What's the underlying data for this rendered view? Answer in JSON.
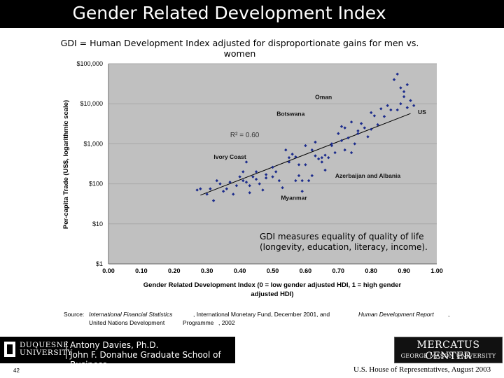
{
  "slide": {
    "title": "Gender Related Development Index",
    "subtitle": "GDI = Human Development Index adjusted for disproportionate gains for men vs. women",
    "page_number": "42",
    "footer_right": "U.S. House of Representatives, August 2003"
  },
  "source": {
    "label": "Source:",
    "pub1": "International Financial Statistics",
    "org1": ", International Monetary Fund, December 2001, and",
    "pub2": "Human Development Report",
    "comma": ",",
    "org2a": "United Nations Development",
    "org2b": "Programme",
    "year": ", 2002"
  },
  "logos": {
    "duquesne_line1": "DUQUESNE",
    "duquesne_line2": "UNIVERSITY",
    "author_line1": "Antony Davies, Ph.D.",
    "author_line2": "John F. Donahue Graduate School of Business",
    "mercatus_line1": "MERCATUS CENTER",
    "mercatus_line2": "GEORGE MASON UNIVERSITY"
  },
  "chart_data": {
    "type": "scatter",
    "xlabel": "Gender Related Development Index (0 = low gender adjusted HDI, 1 = high gender adjusted HDI)",
    "ylabel": "Per-capita Trade (US$, logarithmic scale)",
    "xlim": [
      0,
      1
    ],
    "ylim": [
      1,
      100000
    ],
    "y_scale": "log",
    "x_ticks": [
      "0.00",
      "0.10",
      "0.20",
      "0.30",
      "0.40",
      "0.50",
      "0.60",
      "0.70",
      "0.80",
      "0.90",
      "1.00"
    ],
    "y_ticks": [
      "$1",
      "$10",
      "$100",
      "$1,000",
      "$10,000",
      "$100,000"
    ],
    "y_tick_values": [
      1,
      10,
      100,
      1000,
      10000,
      100000
    ],
    "r_squared": "R² = 0.60",
    "annotations": [
      {
        "text": "Oman",
        "x": 0.655,
        "y": 13000
      },
      {
        "text": "US",
        "x": 0.955,
        "y": 5500
      },
      {
        "text": "Botswana",
        "x": 0.555,
        "y": 5000
      },
      {
        "text": "Ivory Coast",
        "x": 0.37,
        "y": 420
      },
      {
        "text": "Azerbaijan and Albania",
        "x": 0.79,
        "y": 140
      },
      {
        "text": "Myanmar",
        "x": 0.565,
        "y": 40
      }
    ],
    "note": "GDI measures equality of quality of life (longevity, education, literacy, income).",
    "trendline": {
      "x": [
        0.28,
        0.92
      ],
      "y": [
        52,
        5700
      ]
    },
    "points": [
      [
        0.27,
        70
      ],
      [
        0.28,
        75
      ],
      [
        0.3,
        55
      ],
      [
        0.31,
        75
      ],
      [
        0.32,
        38
      ],
      [
        0.33,
        120
      ],
      [
        0.34,
        100
      ],
      [
        0.35,
        65
      ],
      [
        0.36,
        75
      ],
      [
        0.37,
        110
      ],
      [
        0.38,
        55
      ],
      [
        0.39,
        90
      ],
      [
        0.4,
        150
      ],
      [
        0.41,
        200
      ],
      [
        0.41,
        120
      ],
      [
        0.42,
        110
      ],
      [
        0.43,
        90
      ],
      [
        0.43,
        60
      ],
      [
        0.44,
        150
      ],
      [
        0.45,
        130
      ],
      [
        0.46,
        100
      ],
      [
        0.47,
        70
      ],
      [
        0.48,
        140
      ],
      [
        0.5,
        150
      ],
      [
        0.5,
        260
      ],
      [
        0.51,
        200
      ],
      [
        0.52,
        120
      ],
      [
        0.53,
        80
      ],
      [
        0.54,
        700
      ],
      [
        0.55,
        450
      ],
      [
        0.56,
        550
      ],
      [
        0.57,
        470
      ],
      [
        0.58,
        300
      ],
      [
        0.58,
        160
      ],
      [
        0.59,
        65
      ],
      [
        0.59,
        120
      ],
      [
        0.6,
        300
      ],
      [
        0.61,
        120
      ],
      [
        0.62,
        700
      ],
      [
        0.63,
        500
      ],
      [
        0.64,
        420
      ],
      [
        0.65,
        350
      ],
      [
        0.66,
        520
      ],
      [
        0.67,
        450
      ],
      [
        0.68,
        900
      ],
      [
        0.69,
        600
      ],
      [
        0.7,
        1800
      ],
      [
        0.71,
        1200
      ],
      [
        0.72,
        2500
      ],
      [
        0.72,
        700
      ],
      [
        0.73,
        1400
      ],
      [
        0.74,
        600
      ],
      [
        0.75,
        1000
      ],
      [
        0.76,
        1800
      ],
      [
        0.77,
        3200
      ],
      [
        0.78,
        2500
      ],
      [
        0.79,
        1500
      ],
      [
        0.8,
        6000
      ],
      [
        0.8,
        2300
      ],
      [
        0.81,
        5000
      ],
      [
        0.82,
        3000
      ],
      [
        0.83,
        7500
      ],
      [
        0.84,
        4800
      ],
      [
        0.85,
        9000
      ],
      [
        0.86,
        7000
      ],
      [
        0.87,
        40000
      ],
      [
        0.88,
        55000
      ],
      [
        0.89,
        25000
      ],
      [
        0.9,
        15000
      ],
      [
        0.91,
        8000
      ],
      [
        0.92,
        12000
      ],
      [
        0.88,
        7000
      ],
      [
        0.89,
        10000
      ],
      [
        0.9,
        20000
      ],
      [
        0.91,
        30000
      ],
      [
        0.93,
        9000
      ],
      [
        0.68,
        1000
      ],
      [
        0.71,
        2700
      ],
      [
        0.74,
        3500
      ],
      [
        0.76,
        2100
      ],
      [
        0.62,
        160
      ],
      [
        0.65,
        450
      ],
      [
        0.66,
        220
      ],
      [
        0.63,
        1100
      ],
      [
        0.6,
        900
      ],
      [
        0.57,
        120
      ],
      [
        0.55,
        350
      ],
      [
        0.48,
        170
      ],
      [
        0.45,
        200
      ],
      [
        0.42,
        350
      ]
    ]
  }
}
